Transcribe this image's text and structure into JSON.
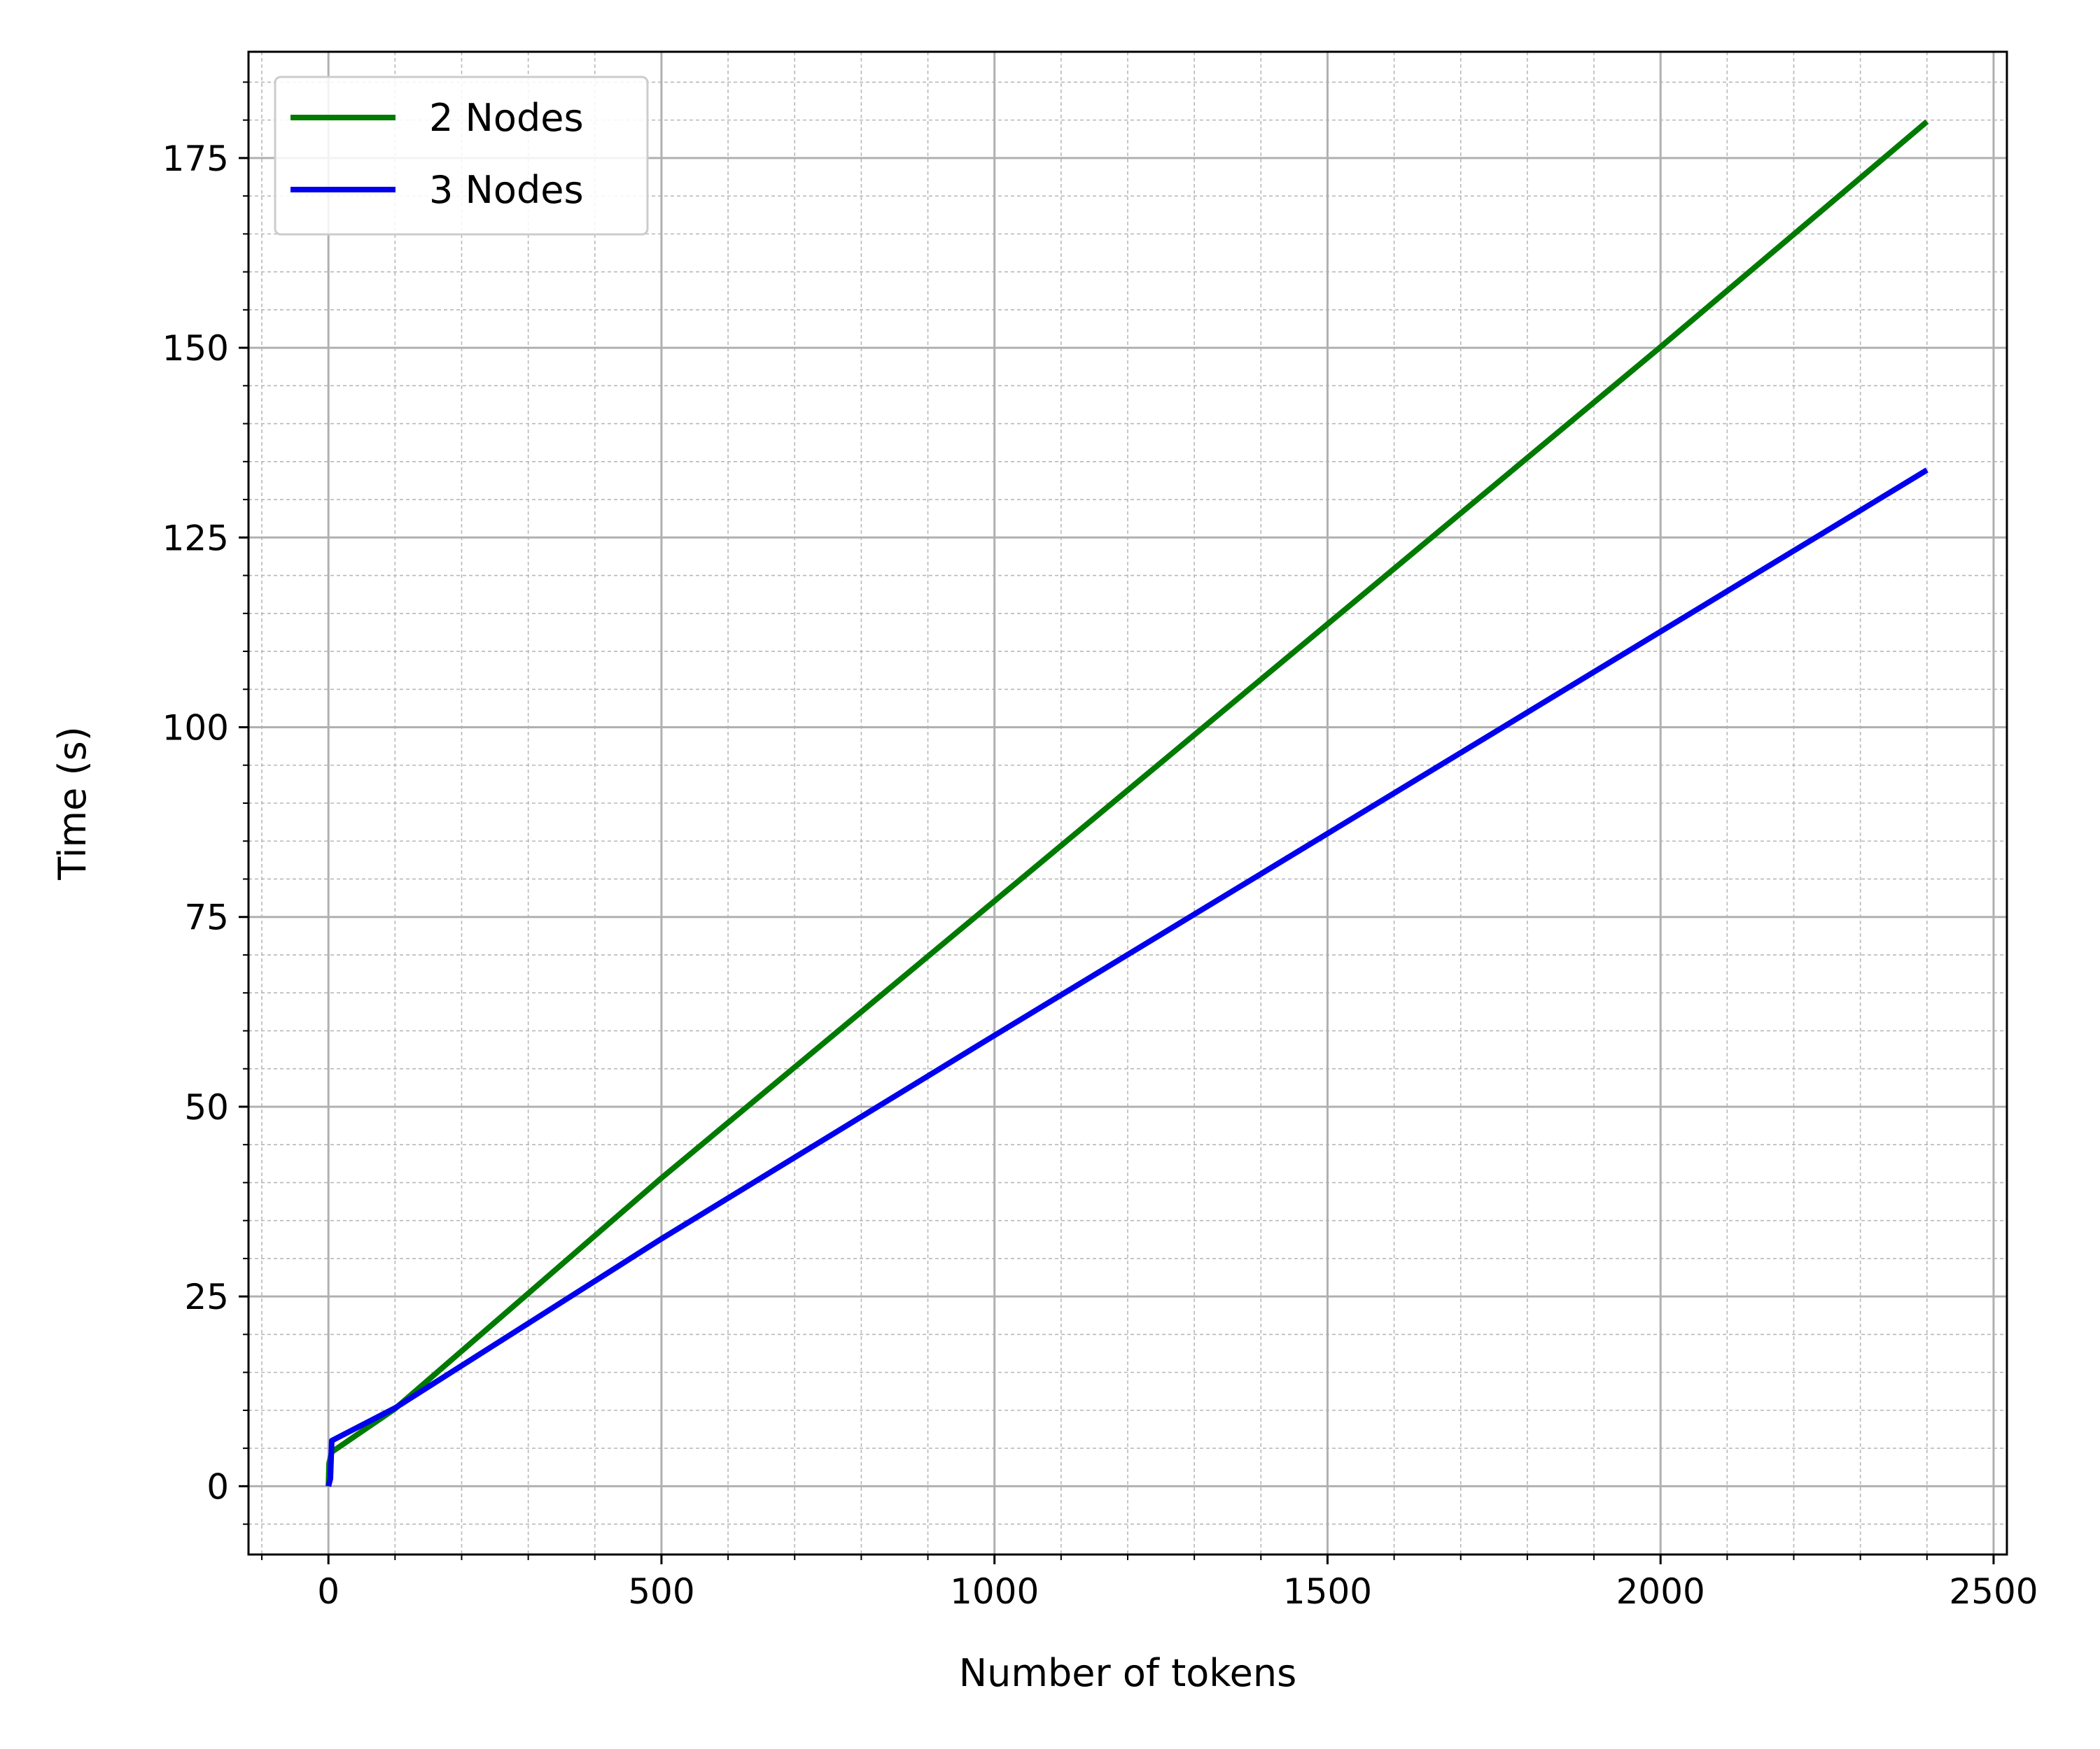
{
  "chart_data": {
    "type": "line",
    "title": "",
    "xlabel": "Number of tokens",
    "ylabel": "Time (s)",
    "xlim": [
      -120,
      2520
    ],
    "ylim": [
      -9,
      189
    ],
    "xticks": [
      0,
      500,
      1000,
      1500,
      2000,
      2500
    ],
    "yticks": [
      0,
      25,
      50,
      75,
      100,
      125,
      150,
      175
    ],
    "x_minor_step": 100,
    "y_minor_step": 5,
    "grid": true,
    "legend_position": "top-left",
    "series": [
      {
        "name": "2 Nodes",
        "color": "#007a00",
        "x": [
          0,
          1,
          5,
          100,
          500,
          1000,
          1500,
          2000,
          2400
        ],
        "y": [
          0,
          3,
          4.5,
          10.2,
          40.6,
          77.1,
          113.6,
          150.1,
          179.8
        ]
      },
      {
        "name": "3 Nodes",
        "color": "#0000ee",
        "x": [
          0,
          3,
          5,
          100,
          500,
          1000,
          1500,
          2000,
          2400
        ],
        "y": [
          0,
          1,
          6,
          10.3,
          32.6,
          59.4,
          86.0,
          112.6,
          133.9
        ]
      }
    ]
  }
}
